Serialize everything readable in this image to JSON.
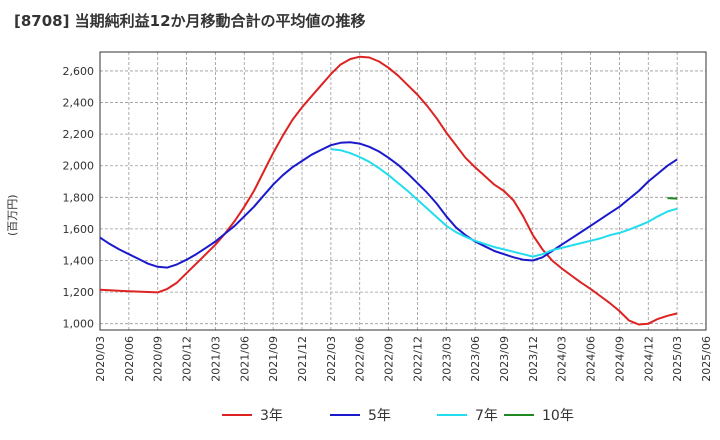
{
  "chart_data": {
    "type": "line",
    "title": "[8708]  当期純利益12か月移動合計の平均値の推移",
    "ylabel": "(百万円)",
    "xlabel": "",
    "ylim": [
      960,
      2720
    ],
    "yticks": [
      1000,
      1200,
      1400,
      1600,
      1800,
      2000,
      2200,
      2400,
      2600
    ],
    "ytick_labels": [
      "1,000",
      "1,200",
      "1,400",
      "1,600",
      "1,800",
      "2,000",
      "2,200",
      "2,400",
      "2,600"
    ],
    "xticks": [
      "2020/03",
      "2020/06",
      "2020/09",
      "2020/12",
      "2021/03",
      "2021/06",
      "2021/09",
      "2021/12",
      "2022/03",
      "2022/06",
      "2022/09",
      "2022/12",
      "2023/03",
      "2023/06",
      "2023/09",
      "2023/12",
      "2024/03",
      "2024/06",
      "2024/09",
      "2024/12",
      "2025/03",
      "2025/06"
    ],
    "grid": true,
    "legend_position": "bottom",
    "series": [
      {
        "name": "3年",
        "color": "#dd2222",
        "x": [
          "2020/03",
          "2020/06",
          "2020/09",
          "2020/10",
          "2020/11",
          "2020/12",
          "2021/01",
          "2021/02",
          "2021/03",
          "2021/04",
          "2021/05",
          "2021/06",
          "2021/07",
          "2021/08",
          "2021/09",
          "2021/10",
          "2021/11",
          "2021/12",
          "2022/01",
          "2022/02",
          "2022/03",
          "2022/04",
          "2022/05",
          "2022/06",
          "2022/07",
          "2022/08",
          "2022/09",
          "2022/10",
          "2022/11",
          "2022/12",
          "2023/01",
          "2023/02",
          "2023/03",
          "2023/04",
          "2023/05",
          "2023/06",
          "2023/07",
          "2023/08",
          "2023/09",
          "2023/10",
          "2023/11",
          "2023/12",
          "2024/01",
          "2024/02",
          "2024/03",
          "2024/04",
          "2024/05",
          "2024/06",
          "2024/07",
          "2024/08",
          "2024/09",
          "2024/10",
          "2024/11",
          "2024/12",
          "2025/01",
          "2025/02",
          "2025/03"
        ],
        "values": [
          1215,
          1205,
          1198,
          1220,
          1260,
          1320,
          1380,
          1440,
          1500,
          1570,
          1650,
          1740,
          1840,
          1960,
          2080,
          2190,
          2290,
          2370,
          2440,
          2510,
          2580,
          2640,
          2675,
          2690,
          2685,
          2660,
          2620,
          2570,
          2510,
          2450,
          2380,
          2300,
          2210,
          2130,
          2050,
          1990,
          1935,
          1880,
          1840,
          1780,
          1680,
          1560,
          1470,
          1400,
          1350,
          1305,
          1260,
          1220,
          1175,
          1130,
          1080,
          1020,
          995,
          1000,
          1030,
          1050,
          1065
        ]
      },
      {
        "name": "5年",
        "color": "#1a1acc",
        "x": [
          "2020/03",
          "2020/04",
          "2020/05",
          "2020/06",
          "2020/07",
          "2020/08",
          "2020/09",
          "2020/10",
          "2020/11",
          "2020/12",
          "2021/01",
          "2021/02",
          "2021/03",
          "2021/04",
          "2021/05",
          "2021/06",
          "2021/07",
          "2021/08",
          "2021/09",
          "2021/10",
          "2021/11",
          "2021/12",
          "2022/01",
          "2022/02",
          "2022/03",
          "2022/04",
          "2022/05",
          "2022/06",
          "2022/07",
          "2022/08",
          "2022/09",
          "2022/10",
          "2022/11",
          "2022/12",
          "2023/01",
          "2023/02",
          "2023/03",
          "2023/04",
          "2023/05",
          "2023/06",
          "2023/07",
          "2023/08",
          "2023/09",
          "2023/10",
          "2023/11",
          "2023/12",
          "2024/01",
          "2024/02",
          "2024/03",
          "2024/04",
          "2024/05",
          "2024/06",
          "2024/07",
          "2024/08",
          "2024/09",
          "2024/10",
          "2024/11",
          "2024/12",
          "2025/01",
          "2025/02",
          "2025/03"
        ],
        "values": [
          1545,
          1505,
          1470,
          1440,
          1410,
          1380,
          1360,
          1355,
          1375,
          1405,
          1440,
          1480,
          1520,
          1570,
          1620,
          1680,
          1740,
          1810,
          1880,
          1940,
          1990,
          2030,
          2070,
          2100,
          2130,
          2145,
          2148,
          2140,
          2120,
          2090,
          2050,
          2005,
          1950,
          1890,
          1830,
          1760,
          1680,
          1610,
          1560,
          1520,
          1490,
          1460,
          1440,
          1420,
          1405,
          1400,
          1420,
          1460,
          1500,
          1540,
          1580,
          1620,
          1660,
          1700,
          1740,
          1790,
          1840,
          1900,
          1950,
          2000,
          2040
        ]
      },
      {
        "name": "7年",
        "color": "#22ddee",
        "x": [
          "2022/03",
          "2022/04",
          "2022/05",
          "2022/06",
          "2022/07",
          "2022/08",
          "2022/09",
          "2022/10",
          "2022/11",
          "2022/12",
          "2023/01",
          "2023/02",
          "2023/03",
          "2023/04",
          "2023/05",
          "2023/06",
          "2023/07",
          "2023/08",
          "2023/09",
          "2023/10",
          "2023/11",
          "2023/12",
          "2024/01",
          "2024/02",
          "2024/03",
          "2024/04",
          "2024/05",
          "2024/06",
          "2024/07",
          "2024/08",
          "2024/09",
          "2024/10",
          "2024/11",
          "2024/12",
          "2025/01",
          "2025/02",
          "2025/03"
        ],
        "values": [
          2105,
          2098,
          2080,
          2055,
          2025,
          1985,
          1940,
          1890,
          1840,
          1785,
          1730,
          1675,
          1620,
          1580,
          1550,
          1525,
          1505,
          1485,
          1470,
          1455,
          1440,
          1425,
          1440,
          1465,
          1480,
          1495,
          1510,
          1525,
          1540,
          1560,
          1575,
          1595,
          1620,
          1645,
          1680,
          1710,
          1728
        ]
      },
      {
        "name": "10年",
        "color": "#228822",
        "x": [
          "2025/02",
          "2025/03"
        ],
        "values": [
          1795,
          1792
        ]
      }
    ]
  }
}
